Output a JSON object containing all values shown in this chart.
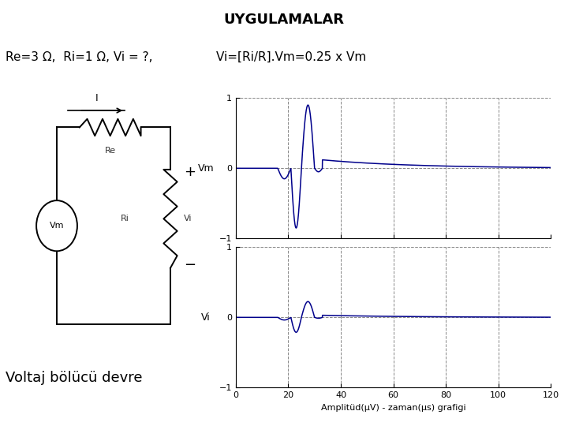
{
  "title": "UYGULAMALAR",
  "formula_text1": "Re=3 Ω,  Ri=1 Ω, Vi = ?,",
  "formula_text2": "Vi=[Ri/R].Vm=0.25 x Vm",
  "caption": "Voltaj bölücü devre",
  "bg_color": "#c0c0c0",
  "plot_bg": "#ffffff",
  "line_color": "#00008b",
  "xlabel": "Amplitüd(μV) - zaman(μs) grafigi",
  "ylabel_top": "Vm",
  "ylabel_bottom": "Vi",
  "xlim": [
    0,
    120
  ],
  "ylim": [
    -1,
    1
  ],
  "xticks": [
    0,
    20,
    40,
    60,
    80,
    100,
    120
  ],
  "yticks": [
    -1,
    0,
    1
  ],
  "grid_color": "#888888",
  "scale_factor": 0.25,
  "title_fontsize": 13,
  "formula_fontsize": 11,
  "caption_fontsize": 13
}
